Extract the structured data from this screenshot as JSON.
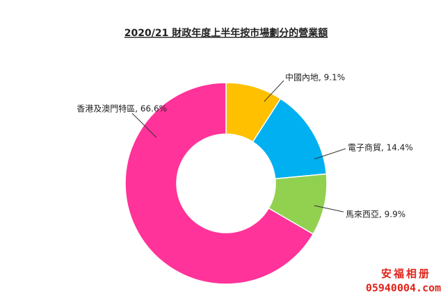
{
  "chart_data": {
    "type": "donut",
    "title": "2020/21 財政年度上半年按市場劃分的營業額",
    "values": [
      9.1,
      14.4,
      9.9,
      66.6
    ],
    "value_labels": [
      "中國內地, 9.1%",
      "電子商貿, 14.4%",
      "馬來西亞, 9.9%",
      "香港及澳門特區, 66.6%"
    ],
    "colors": [
      "#ffc000",
      "#00b0f0",
      "#92d050",
      "#ff3399"
    ]
  },
  "watermark": {
    "line1": "安福相册",
    "line2": "05940004.com"
  }
}
